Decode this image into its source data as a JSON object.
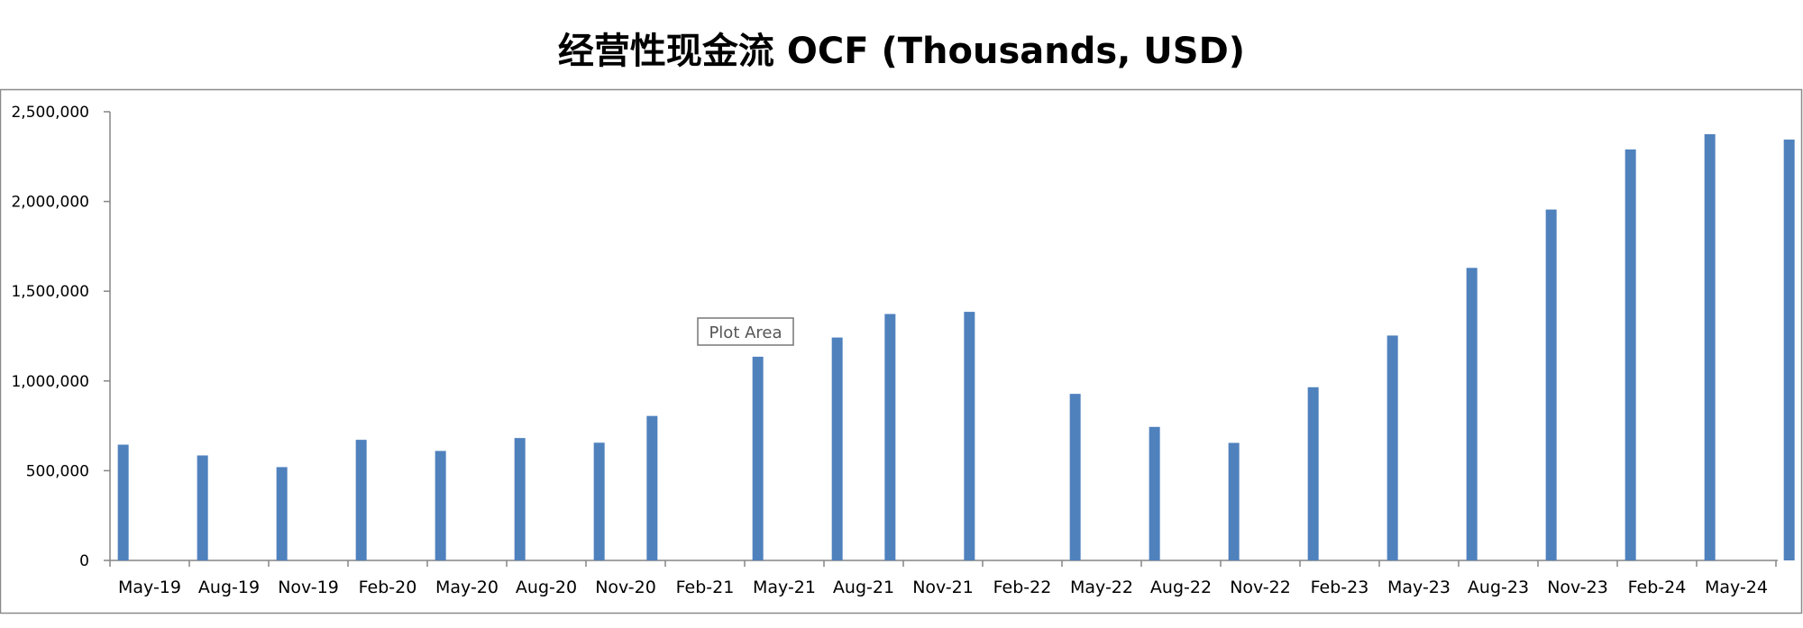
{
  "chart_data": {
    "type": "bar",
    "title": "经营性现金流 OCF (Thousands, USD)",
    "xlabel": "",
    "ylabel": "",
    "ylim": [
      0,
      2500000
    ],
    "yticks": [
      0,
      500000,
      1000000,
      1500000,
      2000000,
      2500000
    ],
    "ytick_labels": [
      "0",
      "500,000",
      "1,000,000",
      "1,500,000",
      "2,000,000",
      "2,500,000"
    ],
    "xtick_labels": [
      "May-19",
      "Aug-19",
      "Nov-19",
      "Feb-20",
      "May-20",
      "Aug-20",
      "Nov-20",
      "Feb-21",
      "May-21",
      "Aug-21",
      "Nov-21",
      "Feb-22",
      "May-22",
      "Aug-22",
      "Nov-22",
      "Feb-23",
      "May-23",
      "Aug-23",
      "Nov-23",
      "Feb-24",
      "May-24"
    ],
    "bar_color": "#4F81BD",
    "grid": false,
    "legend": "none",
    "points": [
      {
        "x": "Apr-19",
        "y": 645000
      },
      {
        "x": "Jul-19",
        "y": 585000
      },
      {
        "x": "Oct-19",
        "y": 520000
      },
      {
        "x": "Jan-20",
        "y": 672000
      },
      {
        "x": "Apr-20",
        "y": 610000
      },
      {
        "x": "Jul-20",
        "y": 682000
      },
      {
        "x": "Oct-20",
        "y": 656000
      },
      {
        "x": "Dec-20",
        "y": 805000
      },
      {
        "x": "Apr-21",
        "y": 1135000
      },
      {
        "x": "Jul-21",
        "y": 1242000
      },
      {
        "x": "Sep-21",
        "y": 1373000
      },
      {
        "x": "Dec-21",
        "y": 1385000
      },
      {
        "x": "Apr-22",
        "y": 928000
      },
      {
        "x": "Jul-22",
        "y": 744000
      },
      {
        "x": "Oct-22",
        "y": 655000
      },
      {
        "x": "Jan-23",
        "y": 965000
      },
      {
        "x": "Apr-23",
        "y": 1253000
      },
      {
        "x": "Jul-23",
        "y": 1630000
      },
      {
        "x": "Oct-23",
        "y": 1955000
      },
      {
        "x": "Jan-24",
        "y": 2290000
      },
      {
        "x": "Apr-24",
        "y": 2375000
      },
      {
        "x": "Jul-24",
        "y": 2345000
      }
    ]
  },
  "tooltip": {
    "label": "Plot Area"
  }
}
